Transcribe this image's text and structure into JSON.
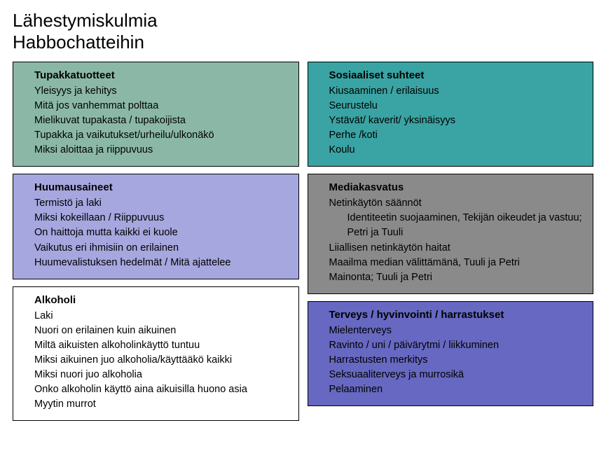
{
  "title_line1": "Lähestymiskulmia",
  "title_line2": "Habbochatteihin",
  "boxes": {
    "tupakka": {
      "bg": "#8bb8a6",
      "title": "Tupakkatuotteet",
      "items": [
        "Yleisyys ja kehitys",
        "Mitä jos vanhemmat polttaa",
        "Mielikuvat tupakasta / tupakoijista",
        "Tupakka ja vaikutukset/urheilu/ulkonäkö",
        "Miksi aloittaa ja riippuvuus"
      ]
    },
    "huumaus": {
      "bg": "#a6a7df",
      "title": "Huumausaineet",
      "items": [
        "Termistö ja laki",
        "Miksi kokeillaan / Riippuvuus",
        "On haittoja mutta kaikki ei kuole",
        "Vaikutus eri ihmisiin on erilainen",
        "Huumevalistuksen hedelmät / Mitä ajattelee"
      ]
    },
    "alkoholi": {
      "bg": "#ffffff",
      "title": "Alkoholi",
      "items": [
        "Laki",
        "Nuori on erilainen kuin aikuinen",
        "Miltä aikuisten alkoholinkäyttö tuntuu",
        "Miksi aikuinen juo alkoholia/käyttääkö kaikki",
        "Miksi nuori juo alkoholia",
        "Onko alkoholin käyttö aina aikuisilla huono asia",
        "Myytin murrot"
      ]
    },
    "sosiaaliset": {
      "bg": "#3aa3a3",
      "title": "Sosiaaliset suhteet",
      "items": [
        "Kiusaaminen / erilaisuus",
        "Seurustelu",
        "Ystävät/ kaverit/ yksinäisyys",
        "Perhe /koti",
        "Koulu"
      ]
    },
    "media": {
      "bg": "#8a8a8a",
      "title": "Mediakasvatus",
      "items": [
        "Netinkäytön säännöt",
        {
          "text": "Identiteetin suojaaminen, Tekijän oikeudet ja vastuu; Petri ja Tuuli",
          "indent": true
        },
        "Liiallisen netinkäytön haitat",
        "Maailma median välittämänä, Tuuli ja Petri",
        "Mainonta; Tuuli ja Petri"
      ]
    },
    "terveys": {
      "bg": "#6668c1",
      "title": "Terveys / hyvinvointi / harrastukset",
      "items": [
        "Mielenterveys",
        "Ravinto / uni / päivärytmi / liikkuminen",
        "Harrastusten merkitys",
        "Seksuaaliterveys ja murrosikä",
        "Pelaaminen"
      ]
    }
  }
}
